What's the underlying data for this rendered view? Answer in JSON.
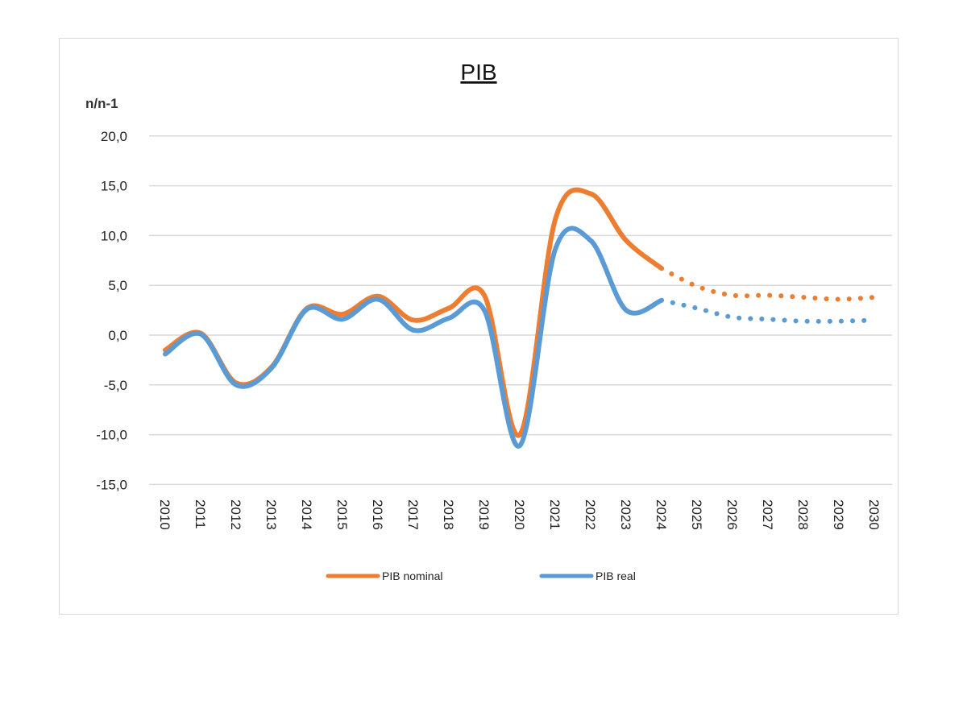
{
  "chart_data": {
    "type": "line",
    "title": "PIB",
    "ylabel": "n/n-1",
    "xlabel": "",
    "ylim": [
      -15,
      20
    ],
    "yticks": [
      "20,0",
      "15,0",
      "10,0",
      "5,0",
      "0,0",
      "-5,0",
      "-10,0",
      "-15,0"
    ],
    "ytick_values": [
      20,
      15,
      10,
      5,
      0,
      -5,
      -10,
      -15
    ],
    "grid": true,
    "legend_position": "bottom",
    "categories": [
      "2010",
      "2011",
      "2012",
      "2013",
      "2014",
      "2015",
      "2016",
      "2017",
      "2018",
      "2019",
      "2020",
      "2021",
      "2022",
      "2023",
      "2024",
      "2025",
      "2026",
      "2027",
      "2028",
      "2029",
      "2030"
    ],
    "forecast_from": "2024",
    "series": [
      {
        "name": "PIB nominal",
        "color": "#ED7D31",
        "values": [
          -1.5,
          0.2,
          -4.8,
          -3.2,
          2.7,
          2.1,
          3.9,
          1.5,
          2.7,
          4.0,
          -10.0,
          11.6,
          14.2,
          9.5,
          6.7,
          4.9,
          4.0,
          4.0,
          3.8,
          3.6,
          3.8
        ]
      },
      {
        "name": "PIB real",
        "color": "#5B9BD5",
        "values": [
          -1.9,
          0.1,
          -5.0,
          -3.3,
          2.6,
          1.6,
          3.6,
          0.5,
          1.7,
          2.5,
          -11.1,
          8.6,
          9.5,
          2.5,
          3.5,
          2.7,
          1.8,
          1.6,
          1.4,
          1.4,
          1.5
        ]
      }
    ]
  }
}
